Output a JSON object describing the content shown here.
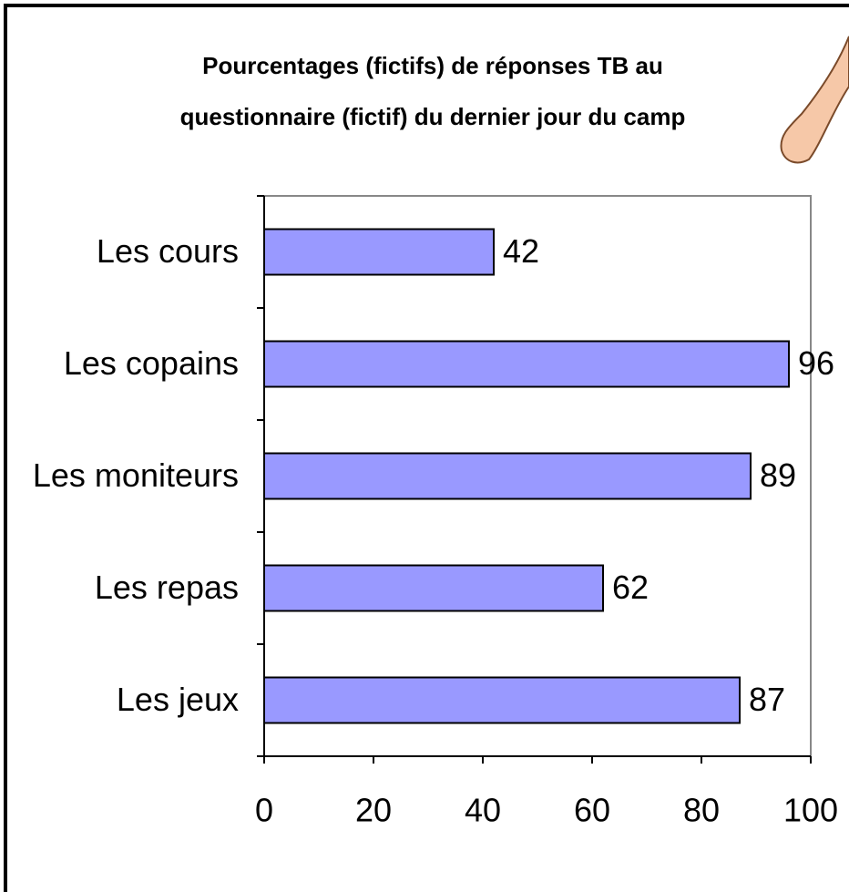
{
  "chart_data": {
    "type": "bar",
    "orientation": "horizontal",
    "title": [
      "Pourcentages (fictifs) de réponses TB au",
      "questionnaire (fictif) du dernier jour du camp"
    ],
    "categories": [
      "Les cours",
      "Les copains",
      "Les moniteurs",
      "Les repas",
      "Les jeux"
    ],
    "values": [
      42,
      96,
      89,
      62,
      87
    ],
    "color": "#9999ff",
    "xlim": [
      0,
      100
    ],
    "xticks": [
      0,
      20,
      40,
      60,
      80,
      100
    ],
    "grid": false
  }
}
